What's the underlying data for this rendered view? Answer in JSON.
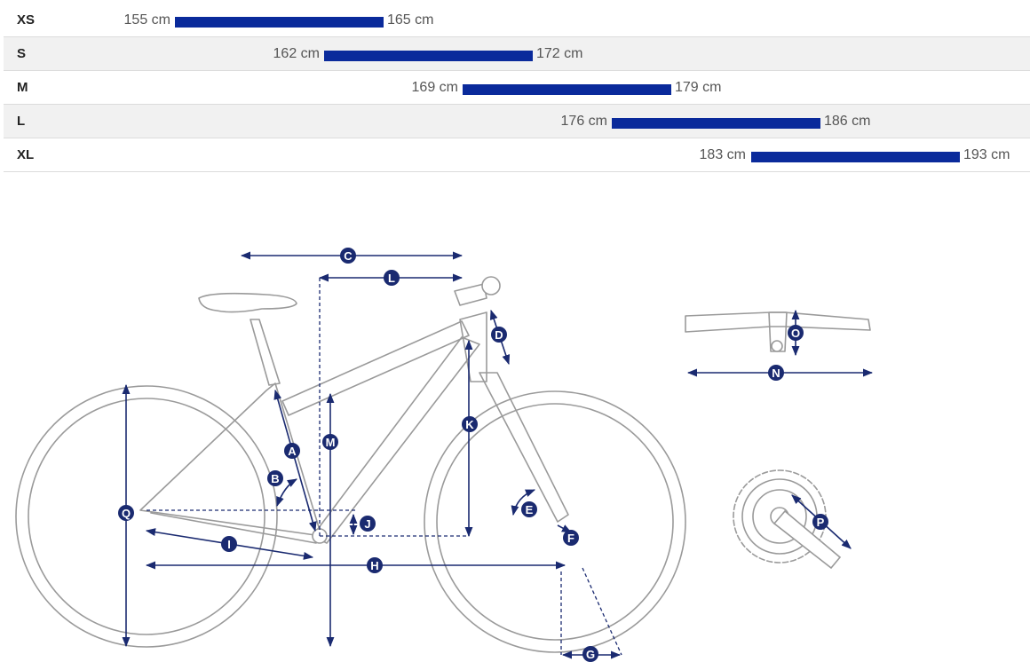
{
  "size_chart": {
    "rows": [
      {
        "size": "XS",
        "min": "155 cm",
        "max": "165 cm"
      },
      {
        "size": "S",
        "min": "162 cm",
        "max": "172 cm"
      },
      {
        "size": "M",
        "min": "169 cm",
        "max": "179 cm"
      },
      {
        "size": "L",
        "min": "176 cm",
        "max": "186 cm"
      },
      {
        "size": "XL",
        "min": "183 cm",
        "max": "193 cm"
      }
    ],
    "bar_color": "#0a2a9b"
  },
  "geometry_labels": {
    "A": "A",
    "B": "B",
    "C": "C",
    "D": "D",
    "E": "E",
    "F": "F",
    "G": "G",
    "H": "H",
    "I": "I",
    "J": "J",
    "K": "K",
    "L": "L",
    "M": "M",
    "N": "N",
    "O": "O",
    "P": "P",
    "Q": "Q"
  },
  "colors": {
    "dimension_lines": "#1a2a70",
    "frame_outline": "#9a9a9a"
  }
}
